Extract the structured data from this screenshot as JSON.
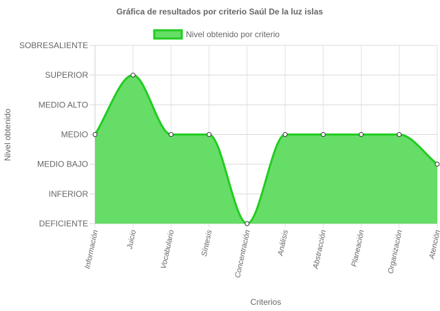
{
  "chart_data": {
    "type": "area",
    "title": "Gráfica de resultados por criterio Saúl De la luz islas",
    "xlabel": "Criterios",
    "ylabel": "Nivel obtenido",
    "y_levels": [
      "DEFICIENTE",
      "INFERIOR",
      "MEDIO BAJO",
      "MEDIO",
      "MEDIO ALTO",
      "SUPERIOR",
      "SOBRESALIENTE"
    ],
    "ylim": [
      0,
      6
    ],
    "categories": [
      "Información",
      "Juicio",
      "Vocabulario",
      "Síntesis",
      "Concentración",
      "Análisis",
      "Abstracción",
      "Planeación",
      "Organización",
      "Atención"
    ],
    "series": [
      {
        "name": "Nivel obtenido por criterio",
        "values": [
          3,
          5,
          3,
          3,
          0,
          3,
          3,
          3,
          3,
          2
        ],
        "fill_color": "#66dd66",
        "line_color": "#22cc22"
      }
    ],
    "grid": true,
    "legend_position": "top-center"
  }
}
